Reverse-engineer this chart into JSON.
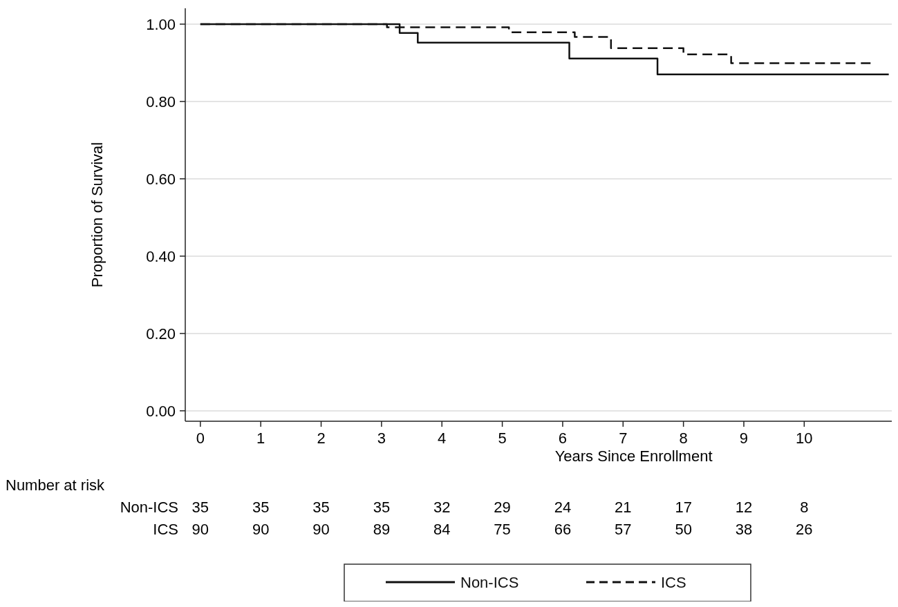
{
  "chart_data": {
    "type": "step",
    "xlabel": "Years Since Enrollment",
    "ylabel": "Proportion of Survival",
    "xlim": [
      -0.25,
      11.45
    ],
    "xticks": [
      0,
      1,
      2,
      3,
      4,
      5,
      6,
      7,
      8,
      9,
      10
    ],
    "ylim": [
      -0.027,
      1.041
    ],
    "yticks": [
      {
        "value": 0,
        "label": "0.00"
      },
      {
        "value": 0.2,
        "label": "0.20"
      },
      {
        "value": 0.4,
        "label": "0.40"
      },
      {
        "value": 0.6,
        "label": "0.60"
      },
      {
        "value": 0.8,
        "label": "0.80"
      },
      {
        "value": 1,
        "label": "1.00"
      }
    ],
    "grid": "y",
    "legend": "bottom",
    "marker": "none",
    "series": [
      {
        "name": "Non-ICS",
        "color": "#111111",
        "line_style": "solid",
        "x": [
          0,
          3.3,
          3.6,
          6.11,
          7.57,
          11.4
        ],
        "values": [
          1,
          0.977,
          0.952,
          0.911,
          0.87,
          0.87
        ]
      },
      {
        "name": "ICS",
        "color": "#111111",
        "line_style": "dashed",
        "x": [
          0,
          3.09,
          5.11,
          6.2,
          6.8,
          8.0,
          8.79,
          11.12
        ],
        "values": [
          1,
          0.992,
          0.979,
          0.967,
          0.938,
          0.922,
          0.899,
          0.899
        ]
      }
    ],
    "annotations": [
      "Number at risk",
      "Non-ICS 35 35 35 35 32 29 24 21 17 12 8",
      "ICS 90 90 90 89 84 75 66 57 50 38 26"
    ]
  }
}
